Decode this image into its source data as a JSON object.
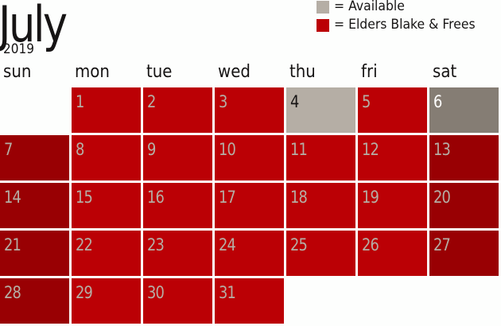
{
  "header": {
    "month": "July",
    "year": "2019"
  },
  "legend": [
    {
      "label": "= Available",
      "color": "#b5aea5"
    },
    {
      "label": "= Elders Blake & Frees",
      "color": "#bb0005"
    }
  ],
  "weekdays": [
    "sun",
    "mon",
    "tue",
    "wed",
    "thu",
    "fri",
    "sat"
  ],
  "colors": {
    "booked_weekday": "#bb0005",
    "booked_weekend": "#990003",
    "available": "#b5aea5",
    "available_weekend": "#857d74",
    "number_on_red": "#b5aea5",
    "number_on_available": "#161414",
    "number_on_available_weekend": "#ffffff"
  },
  "weeks": [
    [
      null,
      {
        "day": "1",
        "status": "booked"
      },
      {
        "day": "2",
        "status": "booked"
      },
      {
        "day": "3",
        "status": "booked"
      },
      {
        "day": "4",
        "status": "available"
      },
      {
        "day": "5",
        "status": "booked"
      },
      {
        "day": "6",
        "status": "available"
      }
    ],
    [
      {
        "day": "7",
        "status": "booked"
      },
      {
        "day": "8",
        "status": "booked"
      },
      {
        "day": "9",
        "status": "booked"
      },
      {
        "day": "10",
        "status": "booked"
      },
      {
        "day": "11",
        "status": "booked"
      },
      {
        "day": "12",
        "status": "booked"
      },
      {
        "day": "13",
        "status": "booked"
      }
    ],
    [
      {
        "day": "14",
        "status": "booked"
      },
      {
        "day": "15",
        "status": "booked"
      },
      {
        "day": "16",
        "status": "booked"
      },
      {
        "day": "17",
        "status": "booked"
      },
      {
        "day": "18",
        "status": "booked"
      },
      {
        "day": "19",
        "status": "booked"
      },
      {
        "day": "20",
        "status": "booked"
      }
    ],
    [
      {
        "day": "21",
        "status": "booked"
      },
      {
        "day": "22",
        "status": "booked"
      },
      {
        "day": "23",
        "status": "booked"
      },
      {
        "day": "24",
        "status": "booked"
      },
      {
        "day": "25",
        "status": "booked"
      },
      {
        "day": "26",
        "status": "booked"
      },
      {
        "day": "27",
        "status": "booked"
      }
    ],
    [
      {
        "day": "28",
        "status": "booked"
      },
      {
        "day": "29",
        "status": "booked"
      },
      {
        "day": "30",
        "status": "booked"
      },
      {
        "day": "31",
        "status": "booked"
      },
      null,
      null,
      null
    ]
  ]
}
